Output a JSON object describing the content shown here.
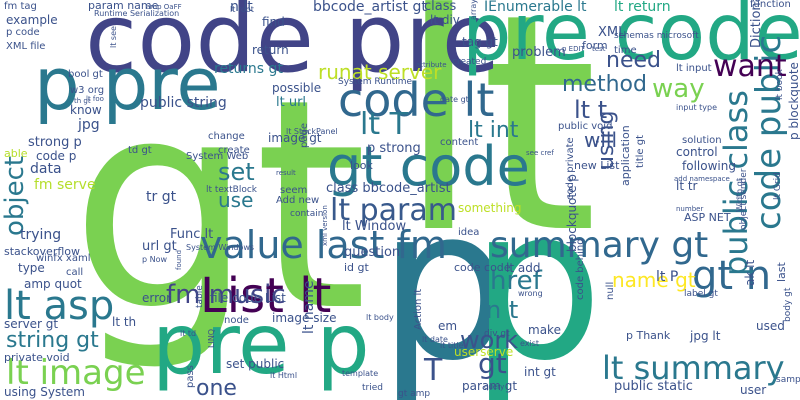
{
  "words": [
    {
      "text": "gt",
      "color": "#7ad151"
    },
    {
      "text": "lt",
      "color": "#7ad151"
    },
    {
      "text": "p",
      "color": "#2a788e"
    },
    {
      "text": "p",
      "color": "#22a884"
    },
    {
      "text": "code pre",
      "color": "#414487"
    },
    {
      "text": "pre code",
      "color": "#22a884"
    },
    {
      "text": "p pre",
      "color": "#2a788e"
    },
    {
      "text": "pre p",
      "color": "#22a884"
    },
    {
      "text": "gt code",
      "color": "#2a788e"
    },
    {
      "text": "code lt",
      "color": "#31688e"
    },
    {
      "text": "List lt",
      "color": "#440154"
    },
    {
      "text": "value last fm",
      "color": "#31688e"
    },
    {
      "text": "summary gt",
      "color": "#31688e"
    },
    {
      "text": "lt summary",
      "color": "#2a788e"
    },
    {
      "text": "lt image",
      "color": "#7ad151"
    },
    {
      "text": "lt asp",
      "color": "#2a788e"
    },
    {
      "text": "gt n",
      "color": "#31688e"
    },
    {
      "text": "lt param",
      "color": "#38598c"
    },
    {
      "text": "code public",
      "color": "#2a788e"
    },
    {
      "text": "public class",
      "color": "#2a788e"
    },
    {
      "text": "want",
      "color": "#440154"
    },
    {
      "text": "runat server",
      "color": "#bddf26"
    },
    {
      "text": "method",
      "color": "#31688e"
    },
    {
      "text": "way",
      "color": "#7ad151"
    },
    {
      "text": "need",
      "color": "#3b528b"
    },
    {
      "text": "lt T",
      "color": "#2a788e"
    },
    {
      "text": "lt int",
      "color": "#2a788e"
    },
    {
      "text": "lt t",
      "color": "#3b528b"
    },
    {
      "text": "lt string",
      "color": "#2a788e"
    },
    {
      "text": "object",
      "color": "#2a788e"
    },
    {
      "text": "set",
      "color": "#2a788e"
    },
    {
      "text": "use",
      "color": "#2a788e"
    },
    {
      "text": "href",
      "color": "#2a788e"
    },
    {
      "text": "n t",
      "color": "#2a788e"
    },
    {
      "text": "fm music",
      "color": "#414487"
    },
    {
      "text": "string gt",
      "color": "#2a788e"
    },
    {
      "text": "work",
      "color": "#3b528b"
    },
    {
      "text": "name gt",
      "color": "#fde725"
    },
    {
      "text": "one",
      "color": "#3b528b"
    },
    {
      "text": "gt",
      "color": "#3b528b"
    },
    {
      "text": "T",
      "color": "#3b528b"
    },
    {
      "text": "using",
      "color": "#3b528b"
    },
    {
      "text": "will",
      "color": "#3b528b"
    },
    {
      "text": "bbcode_artist gt",
      "color": "#3b528b"
    },
    {
      "text": "IEnumerable lt",
      "color": "#2a788e"
    },
    {
      "text": "lt return",
      "color": "#22a884"
    },
    {
      "text": "param name",
      "color": "#3b528b"
    },
    {
      "text": "n lt",
      "color": "#3b528b"
    },
    {
      "text": "class",
      "color": "#3b528b"
    },
    {
      "text": "lt div",
      "color": "#3b528b"
    },
    {
      "text": "returns gt",
      "color": "#2a788e"
    },
    {
      "text": "public string",
      "color": "#3b528b"
    },
    {
      "text": "lt url",
      "color": "#2a788e"
    },
    {
      "text": "possible",
      "color": "#3b528b"
    },
    {
      "text": "image gt",
      "color": "#3b528b"
    },
    {
      "text": "p strong",
      "color": "#3b528b"
    },
    {
      "text": "class bbcode_artist",
      "color": "#3b528b"
    },
    {
      "text": "something",
      "color": "#bddf26"
    },
    {
      "text": "lt Window",
      "color": "#3b528b"
    },
    {
      "text": "question",
      "color": "#3b528b"
    },
    {
      "text": "Func lt",
      "color": "#3b528b"
    },
    {
      "text": "url gt",
      "color": "#3b528b"
    },
    {
      "text": "trying",
      "color": "#3b528b"
    },
    {
      "text": "stackoverflow",
      "color": "#3b528b"
    },
    {
      "text": "type",
      "color": "#3b528b"
    },
    {
      "text": "fm serve",
      "color": "#b5de2b"
    },
    {
      "text": "strong p",
      "color": "#3b528b"
    },
    {
      "text": "jpg",
      "color": "#3b528b"
    },
    {
      "text": "know",
      "color": "#3b528b"
    },
    {
      "text": "tr gt",
      "color": "#3b528b"
    },
    {
      "text": "data",
      "color": "#3b528b"
    },
    {
      "text": "code p",
      "color": "#3b528b"
    },
    {
      "text": "able",
      "color": "#b5de2b"
    },
    {
      "text": "amp quot",
      "color": "#3b528b"
    },
    {
      "text": "server gt",
      "color": "#3b528b"
    },
    {
      "text": "private void",
      "color": "#3b528b"
    },
    {
      "text": "using System",
      "color": "#3b528b"
    },
    {
      "text": "error",
      "color": "#3b528b"
    },
    {
      "text": "lt th",
      "color": "#3b528b"
    },
    {
      "text": "file code List",
      "color": "#3b528b"
    },
    {
      "text": "image size",
      "color": "#3b528b"
    },
    {
      "text": "set public",
      "color": "#3b528b"
    },
    {
      "text": "userserve",
      "color": "#bddf26"
    },
    {
      "text": "make",
      "color": "#3b528b"
    },
    {
      "text": "param gt",
      "color": "#3b528b"
    },
    {
      "text": "int gt",
      "color": "#3b528b"
    },
    {
      "text": "public static",
      "color": "#3b528b"
    },
    {
      "text": "user",
      "color": "#3b528b"
    },
    {
      "text": "used",
      "color": "#3b528b"
    },
    {
      "text": "ak lt",
      "color": "#3b528b"
    },
    {
      "text": "jpg lt",
      "color": "#3b528b"
    },
    {
      "text": "lt tr",
      "color": "#3b528b"
    },
    {
      "text": "control",
      "color": "#3b528b"
    },
    {
      "text": "following",
      "color": "#3b528b"
    },
    {
      "text": "new List",
      "color": "#3b528b"
    },
    {
      "text": "lt add",
      "color": "#3b528b"
    },
    {
      "text": "em",
      "color": "#3b528b"
    },
    {
      "text": "code code",
      "color": "#3b528b"
    },
    {
      "text": "id gt",
      "color": "#3b528b"
    },
    {
      "text": "ASP NET",
      "color": "#3b528b"
    },
    {
      "text": "XML",
      "color": "#3b528b"
    },
    {
      "text": "problem",
      "color": "#3b528b"
    },
    {
      "text": "tag gt",
      "color": "#3b528b"
    },
    {
      "text": "form",
      "color": "#3b528b"
    },
    {
      "text": "find",
      "color": "#3b528b"
    },
    {
      "text": "return",
      "color": "#3b528b"
    },
    {
      "text": "example",
      "color": "#3b528b"
    },
    {
      "text": "fm tag",
      "color": "#3b528b"
    },
    {
      "text": "p code",
      "color": "#3b528b"
    },
    {
      "text": "XML file",
      "color": "#3b528b"
    },
    {
      "text": "bool gt",
      "color": "#3b528b"
    },
    {
      "text": "w3 org",
      "color": "#3b528b"
    },
    {
      "text": "look",
      "color": "#3b528b"
    },
    {
      "text": "seem",
      "color": "#3b528b"
    },
    {
      "text": "Add new",
      "color": "#3b528b"
    },
    {
      "text": "page",
      "color": "#3b528b"
    },
    {
      "text": "content",
      "color": "#3b528b"
    },
    {
      "text": "change",
      "color": "#3b528b"
    },
    {
      "text": "create",
      "color": "#3b528b"
    },
    {
      "text": "System Web",
      "color": "#3b528b"
    },
    {
      "text": "td gt",
      "color": "#3b528b"
    },
    {
      "text": "call",
      "color": "#3b528b"
    },
    {
      "text": "winfx xaml",
      "color": "#3b528b"
    },
    {
      "text": "null",
      "color": "#3b528b"
    },
    {
      "text": "idea",
      "color": "#3b528b"
    },
    {
      "text": "solution",
      "color": "#3b528b"
    },
    {
      "text": "time",
      "color": "#3b528b"
    },
    {
      "text": "function",
      "color": "#3b528b"
    },
    {
      "text": "Dictionary lt",
      "color": "#3b528b"
    },
    {
      "text": "p blockquote",
      "color": "#3b528b"
    },
    {
      "text": "blockquote p",
      "color": "#3b528b"
    },
    {
      "text": "application",
      "color": "#3b528b"
    },
    {
      "text": "title gt",
      "color": "#3b528b"
    },
    {
      "text": "code private",
      "color": "#3b528b"
    },
    {
      "text": "lt input",
      "color": "#3b528b"
    },
    {
      "text": "public void",
      "color": "#3b528b"
    },
    {
      "text": "Action lt",
      "color": "#3b528b"
    },
    {
      "text": "node",
      "color": "#3b528b"
    },
    {
      "text": "pass",
      "color": "#3b528b"
    },
    {
      "text": "tried",
      "color": "#3b528b"
    },
    {
      "text": "gt amp",
      "color": "#3b528b"
    },
    {
      "text": "div gt",
      "color": "#3b528b"
    },
    {
      "text": "label gt",
      "color": "#3b528b"
    },
    {
      "text": "contain",
      "color": "#3b528b"
    },
    {
      "text": "table",
      "color": "#3b528b"
    },
    {
      "text": "lt name",
      "color": "#3b528b"
    },
    {
      "text": "p Thank",
      "color": "#3b528b"
    },
    {
      "text": "code behind",
      "color": "#3b528b"
    },
    {
      "text": "lt P",
      "color": "#3b528b"
    },
    {
      "text": "schemas microsoft",
      "color": "#3b528b"
    },
    {
      "text": "object sender",
      "color": "#3b528b"
    },
    {
      "text": "lt book",
      "color": "#3b528b"
    },
    {
      "text": "lt Grid",
      "color": "#3b528b"
    },
    {
      "text": "sample",
      "color": "#3b528b"
    },
    {
      "text": "last",
      "color": "#3b528b"
    },
    {
      "text": "body gt",
      "color": "#3b528b"
    },
    {
      "text": "System Runtime",
      "color": "#3b528b"
    },
    {
      "text": "lt textBlock",
      "color": "#3b528b"
    },
    {
      "text": "created",
      "color": "#3b528b"
    },
    {
      "text": "lt root",
      "color": "#3b528b"
    },
    {
      "text": "input type",
      "color": "#3b528b"
    },
    {
      "text": "lt see",
      "color": "#3b528b"
    },
    {
      "text": "date gt",
      "color": "#3b528b"
    },
    {
      "text": "Runtime Serialization",
      "color": "#3b528b"
    },
    {
      "text": "System Windows",
      "color": "#3b528b"
    },
    {
      "text": "see cref",
      "color": "#3b528b"
    },
    {
      "text": "lt StackPanel",
      "color": "#3b528b"
    },
    {
      "text": "p Now",
      "color": "#3b528b"
    },
    {
      "text": "wrong",
      "color": "#3b528b"
    },
    {
      "text": "exist",
      "color": "#3b528b"
    },
    {
      "text": "query",
      "color": "#3b528b"
    },
    {
      "text": "template",
      "color": "#3b528b"
    },
    {
      "text": "lt Html",
      "color": "#3b528b"
    },
    {
      "text": "lt title",
      "color": "#3b528b"
    },
    {
      "text": "lt date",
      "color": "#3b528b"
    },
    {
      "text": "lt td",
      "color": "#3b528b"
    },
    {
      "text": "add namespace",
      "color": "#3b528b"
    },
    {
      "text": "number",
      "color": "#3b528b"
    },
    {
      "text": "Width gt",
      "color": "#3b528b"
    },
    {
      "text": "lt body",
      "color": "#3b528b"
    },
    {
      "text": "LINQ",
      "color": "#3b528b"
    },
    {
      "text": "array",
      "color": "#3b528b"
    },
    {
      "text": "p EDIT",
      "color": "#3b528b"
    },
    {
      "text": "test",
      "color": "#3b528b"
    },
    {
      "text": "attribute",
      "color": "#3b528b"
    },
    {
      "text": "result",
      "color": "#3b528b"
    },
    {
      "text": "xml version",
      "color": "#3b528b"
    },
    {
      "text": "found",
      "color": "#3b528b"
    },
    {
      "text": "amp OaFF",
      "color": "#3b528b"
    },
    {
      "text": "lt foo",
      "color": "#3b528b"
    },
    {
      "text": "th gt",
      "color": "#3b528b"
    }
  ]
}
